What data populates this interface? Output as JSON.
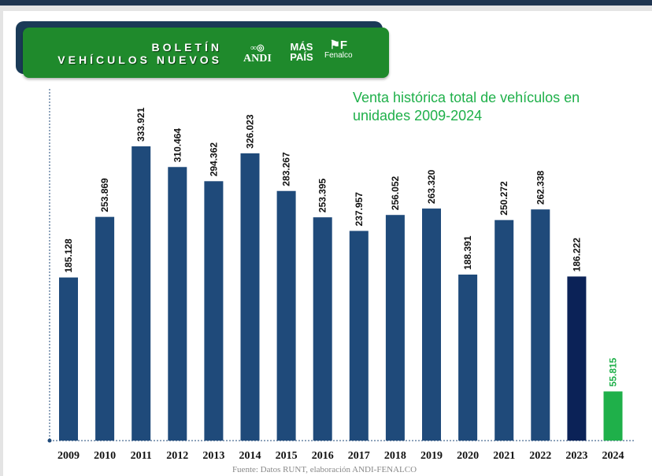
{
  "banner": {
    "line1": "BOLETÍN",
    "line2": "VEHÍCULOS NUEVOS",
    "logos": [
      "ANDI",
      "MÁS PAÍS",
      "Fenalco"
    ]
  },
  "colors": {
    "bar": "#1f4a7a",
    "bar_2023": "#0b2257",
    "bar_2024": "#1fb04a",
    "title": "#1fb04a",
    "banner": "#1f8a2c"
  },
  "chart_data": {
    "type": "bar",
    "title": "Venta histórica total de vehículos en unidades 2009-2024",
    "title_lines": [
      "Venta histórica total de vehículos en",
      "unidades 2009-2024"
    ],
    "categories": [
      "2009",
      "2010",
      "2011",
      "2012",
      "2013",
      "2014",
      "2015",
      "2016",
      "2017",
      "2018",
      "2019",
      "2020",
      "2021",
      "2022",
      "2023",
      "2024"
    ],
    "values": [
      185128,
      253869,
      333921,
      310464,
      294362,
      326023,
      283267,
      253395,
      237957,
      256052,
      263320,
      188391,
      250272,
      262338,
      186222,
      55815
    ],
    "labels": [
      "185.128",
      "253.869",
      "333.921",
      "310.464",
      "294.362",
      "326.023",
      "283.267",
      "253.395",
      "237.957",
      "256.052",
      "263.320",
      "188.391",
      "250.272",
      "262.338",
      "186.222",
      "55.815"
    ],
    "xlabel": "",
    "ylabel": "",
    "ylim": [
      0,
      333921
    ],
    "grid": false,
    "source": "Fuente: Datos RUNT, elaboración ANDI-FENALCO"
  }
}
